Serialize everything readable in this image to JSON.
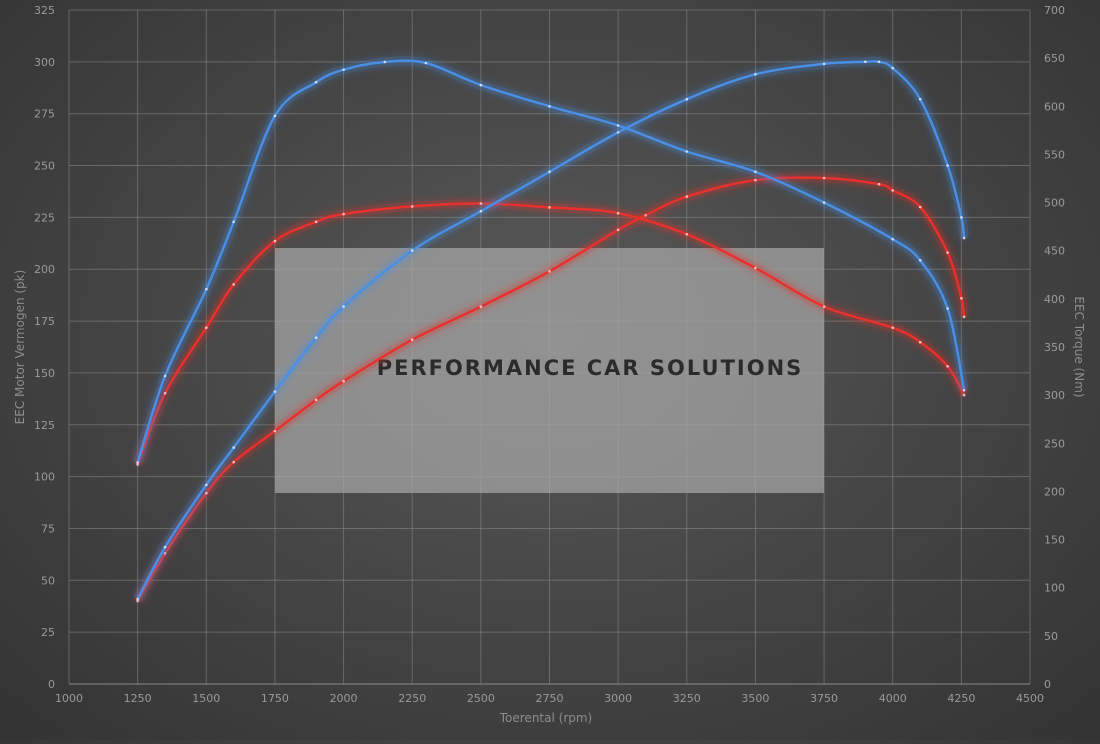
{
  "chart_data": {
    "type": "line",
    "xlabel": "Toerental (rpm)",
    "ylabel_left": "EEC Motor Vermogen (pk)",
    "ylabel_right": "EEC Torque (Nm)",
    "xlim": [
      1000,
      4500
    ],
    "ylim_left": [
      0,
      325
    ],
    "ylim_right": [
      0,
      700
    ],
    "x_ticks": [
      1000,
      1250,
      1500,
      1750,
      2000,
      2250,
      2500,
      2750,
      3000,
      3250,
      3500,
      3750,
      4000,
      4250,
      4500
    ],
    "y_left_ticks": [
      0,
      25,
      50,
      75,
      100,
      125,
      150,
      175,
      200,
      225,
      250,
      275,
      300,
      325
    ],
    "y_right_ticks": [
      0,
      50,
      100,
      150,
      200,
      250,
      300,
      350,
      400,
      450,
      500,
      550,
      600,
      650,
      700
    ],
    "grid": true,
    "series": [
      {
        "color": "#e8302c",
        "axis": "left",
        "points": [
          [
            1250,
            40
          ],
          [
            1350,
            63
          ],
          [
            1500,
            92
          ],
          [
            1600,
            107
          ],
          [
            1750,
            122
          ],
          [
            1900,
            137
          ],
          [
            2000,
            146
          ],
          [
            2250,
            166
          ],
          [
            2500,
            182
          ],
          [
            2750,
            199
          ],
          [
            3000,
            219
          ],
          [
            3100,
            226
          ],
          [
            3250,
            235
          ],
          [
            3500,
            243
          ],
          [
            3750,
            244
          ],
          [
            3950,
            241
          ],
          [
            4000,
            238
          ],
          [
            4100,
            230
          ],
          [
            4200,
            208
          ],
          [
            4250,
            186
          ],
          [
            4260,
            177
          ]
        ]
      },
      {
        "color": "#e8302c",
        "axis": "right",
        "points": [
          [
            1250,
            228
          ],
          [
            1350,
            302
          ],
          [
            1500,
            370
          ],
          [
            1600,
            415
          ],
          [
            1750,
            460
          ],
          [
            1900,
            480
          ],
          [
            2000,
            488
          ],
          [
            2250,
            496
          ],
          [
            2500,
            499
          ],
          [
            2750,
            495
          ],
          [
            3000,
            489
          ],
          [
            3250,
            467
          ],
          [
            3500,
            432
          ],
          [
            3750,
            392
          ],
          [
            4000,
            370
          ],
          [
            4100,
            355
          ],
          [
            4200,
            330
          ],
          [
            4260,
            300
          ]
        ]
      },
      {
        "color": "#4a8fe6",
        "axis": "left",
        "points": [
          [
            1250,
            41
          ],
          [
            1350,
            66
          ],
          [
            1500,
            96
          ],
          [
            1600,
            114
          ],
          [
            1750,
            141
          ],
          [
            1900,
            167
          ],
          [
            2000,
            182
          ],
          [
            2250,
            209
          ],
          [
            2500,
            228
          ],
          [
            2750,
            247
          ],
          [
            3000,
            266
          ],
          [
            3250,
            282
          ],
          [
            3500,
            294
          ],
          [
            3750,
            299
          ],
          [
            3900,
            300
          ],
          [
            3950,
            300
          ],
          [
            4000,
            297
          ],
          [
            4100,
            282
          ],
          [
            4200,
            250
          ],
          [
            4250,
            225
          ],
          [
            4260,
            215
          ]
        ]
      },
      {
        "color": "#4a8fe6",
        "axis": "right",
        "points": [
          [
            1250,
            230
          ],
          [
            1350,
            320
          ],
          [
            1500,
            410
          ],
          [
            1600,
            480
          ],
          [
            1750,
            590
          ],
          [
            1900,
            625
          ],
          [
            2000,
            638
          ],
          [
            2150,
            646
          ],
          [
            2300,
            645
          ],
          [
            2500,
            622
          ],
          [
            2750,
            600
          ],
          [
            3000,
            580
          ],
          [
            3250,
            553
          ],
          [
            3500,
            532
          ],
          [
            3750,
            500
          ],
          [
            4000,
            462
          ],
          [
            4100,
            440
          ],
          [
            4200,
            390
          ],
          [
            4260,
            305
          ]
        ]
      }
    ]
  },
  "brand": {
    "text": "PERFORMANCE CAR SOLUTIONS",
    "logo_icon": "gear-circuit-icon",
    "logo_color": "#b03a36",
    "box_color": "#a8a8a8"
  }
}
